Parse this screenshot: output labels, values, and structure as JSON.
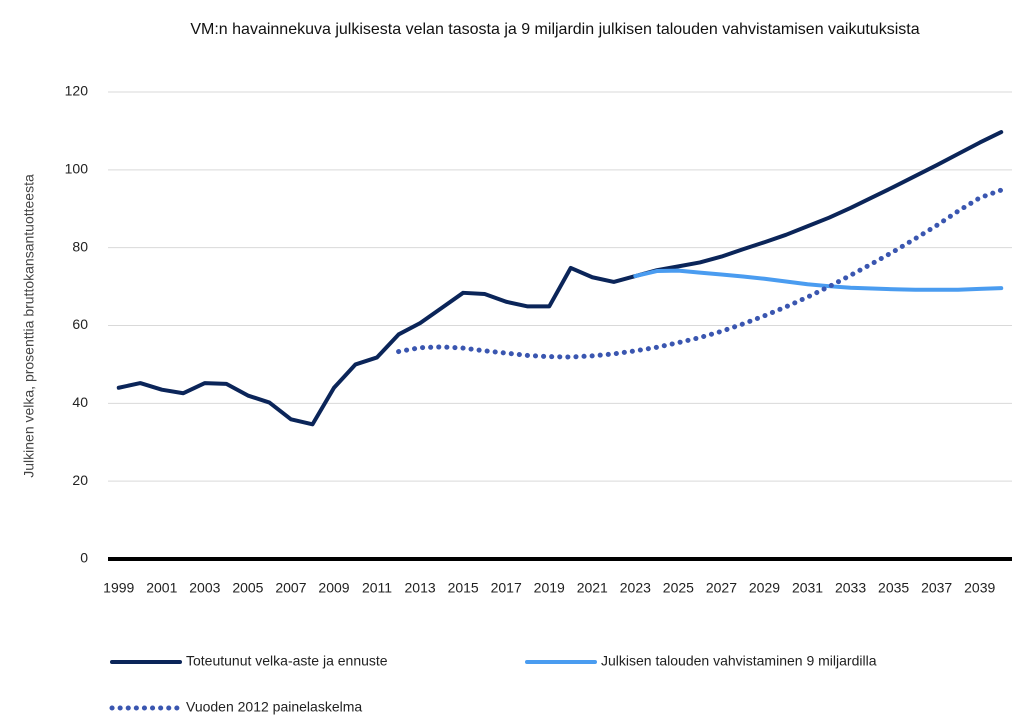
{
  "chart_data": {
    "type": "line",
    "title": "VM:n havainnekuva julkisesta velan tasosta ja 9 miljardin julkisen talouden vahvistamisen vaikutuksista",
    "y_label": "Julkinen velka, prosenttia bruttokansantuotteesta",
    "x": [
      1999,
      2000,
      2001,
      2002,
      2003,
      2004,
      2005,
      2006,
      2007,
      2008,
      2009,
      2010,
      2011,
      2012,
      2013,
      2014,
      2015,
      2016,
      2017,
      2018,
      2019,
      2020,
      2021,
      2022,
      2023,
      2024,
      2025,
      2026,
      2027,
      2028,
      2029,
      2030,
      2031,
      2032,
      2033,
      2034,
      2035,
      2036,
      2037,
      2038,
      2039,
      2040
    ],
    "xlim": [
      1998.5,
      2040.5
    ],
    "xticks": [
      1999,
      2001,
      2003,
      2005,
      2007,
      2009,
      2011,
      2013,
      2015,
      2017,
      2019,
      2021,
      2023,
      2025,
      2027,
      2029,
      2031,
      2033,
      2035,
      2037,
      2039
    ],
    "ylim": [
      0,
      120
    ],
    "yticks": [
      0,
      20,
      40,
      60,
      80,
      100,
      120
    ],
    "grid": true,
    "legend": "bottom",
    "series": [
      {
        "name": "Toteutunut velka-aste ja ennuste",
        "color": "#0b2559",
        "style": "solid",
        "values": [
          44,
          45.2,
          43.5,
          42.6,
          45.2,
          45,
          42,
          40.2,
          35.9,
          34.6,
          44,
          50,
          51.8,
          57.7,
          60.6,
          64.5,
          68.4,
          68.1,
          66.1,
          64.9,
          64.9,
          74.8,
          72.4,
          71.2,
          72.7,
          74.2,
          75.2,
          76.2,
          77.7,
          79.6,
          81.4,
          83.3,
          85.5,
          87.7,
          90.2,
          92.9,
          95.6,
          98.4,
          101.2,
          104.1,
          107,
          109.7
        ]
      },
      {
        "name": "Julkisen talouden vahvistaminen 9 miljardilla",
        "color": "#4a9cf0",
        "style": "solid",
        "values": [
          null,
          null,
          null,
          null,
          null,
          null,
          null,
          null,
          null,
          null,
          null,
          null,
          null,
          null,
          null,
          null,
          null,
          null,
          null,
          null,
          null,
          null,
          null,
          null,
          72.7,
          74,
          74.1,
          73.6,
          73.1,
          72.6,
          72,
          71.3,
          70.6,
          70.1,
          69.7,
          69.5,
          69.3,
          69.2,
          69.2,
          69.2,
          69.4,
          69.6
        ]
      },
      {
        "name": "Vuoden 2012 painelaskelma",
        "color": "#3a56b0",
        "style": "dotted",
        "values": [
          null,
          null,
          null,
          null,
          null,
          null,
          null,
          null,
          null,
          null,
          null,
          null,
          null,
          53.3,
          54.3,
          54.5,
          54.2,
          53.5,
          52.9,
          52.3,
          52,
          51.9,
          52.2,
          52.7,
          53.5,
          54.4,
          55.6,
          56.9,
          58.5,
          60.4,
          62.5,
          64.8,
          67.3,
          70,
          72.9,
          75.9,
          79,
          82.3,
          85.7,
          89.4,
          92.8,
          94.8
        ]
      }
    ]
  }
}
